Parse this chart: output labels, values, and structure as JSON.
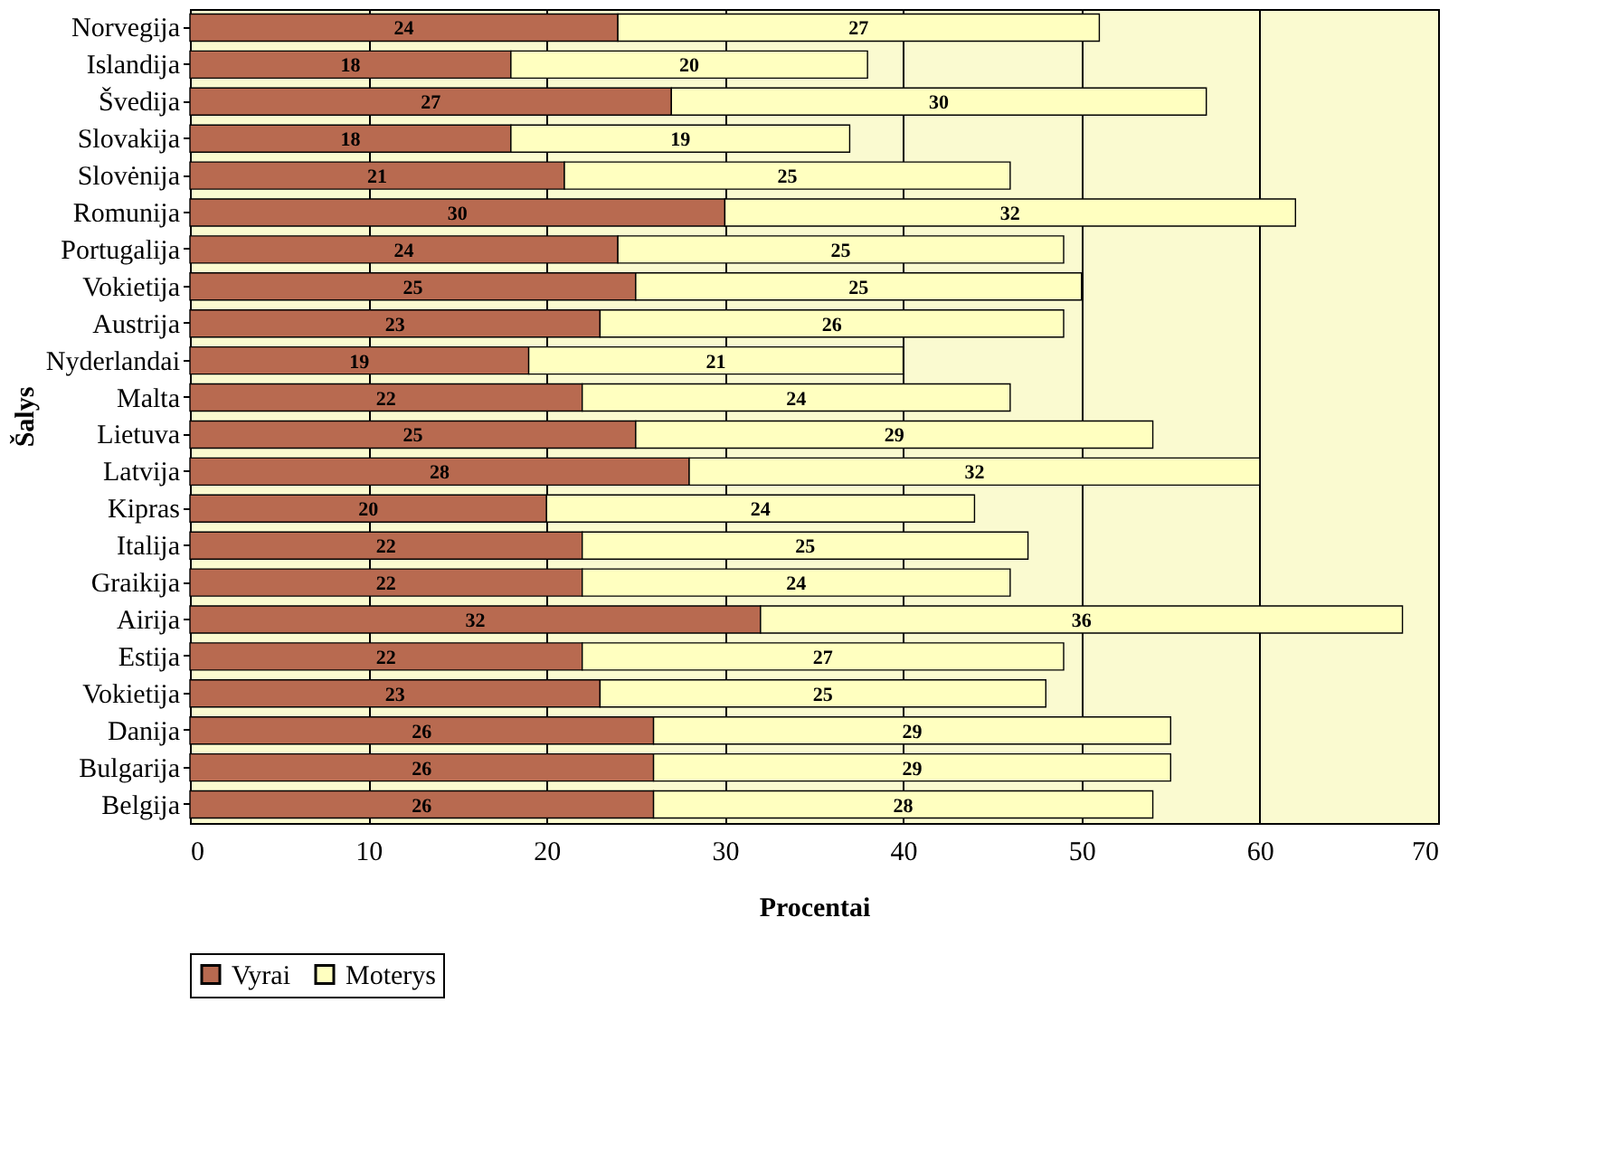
{
  "chart_data": {
    "type": "bar",
    "orientation": "horizontal",
    "stacked": true,
    "xlabel": "Procentai",
    "ylabel": "Šalys",
    "categories": [
      "Norvegija",
      "Islandija",
      "Švedija",
      "Slovakija",
      "Slovėnija",
      "Romunija",
      "Portugalija",
      "Vokietija",
      "Austrija",
      "Nyderlandai",
      "Malta",
      "Lietuva",
      "Latvija",
      "Kipras",
      "Italija",
      "Graikija",
      "Airija",
      "Estija",
      "Vokietija",
      "Danija",
      "Bulgarija",
      "Belgija"
    ],
    "series": [
      {
        "name": "Vyrai",
        "color": "#b86a50",
        "values": [
          24,
          18,
          27,
          18,
          21,
          30,
          24,
          25,
          23,
          19,
          22,
          25,
          28,
          20,
          22,
          22,
          32,
          22,
          23,
          26,
          26,
          26
        ]
      },
      {
        "name": "Moterys",
        "color": "#ffffc0",
        "values": [
          27,
          20,
          30,
          19,
          25,
          32,
          25,
          25,
          26,
          21,
          24,
          29,
          32,
          24,
          25,
          24,
          36,
          27,
          25,
          29,
          29,
          28
        ]
      }
    ],
    "xlim": [
      0,
      70
    ],
    "xticks": [
      0,
      10,
      20,
      30,
      40,
      50,
      60,
      70
    ],
    "grid": "x",
    "legend": "bottom",
    "data_labels": true
  }
}
